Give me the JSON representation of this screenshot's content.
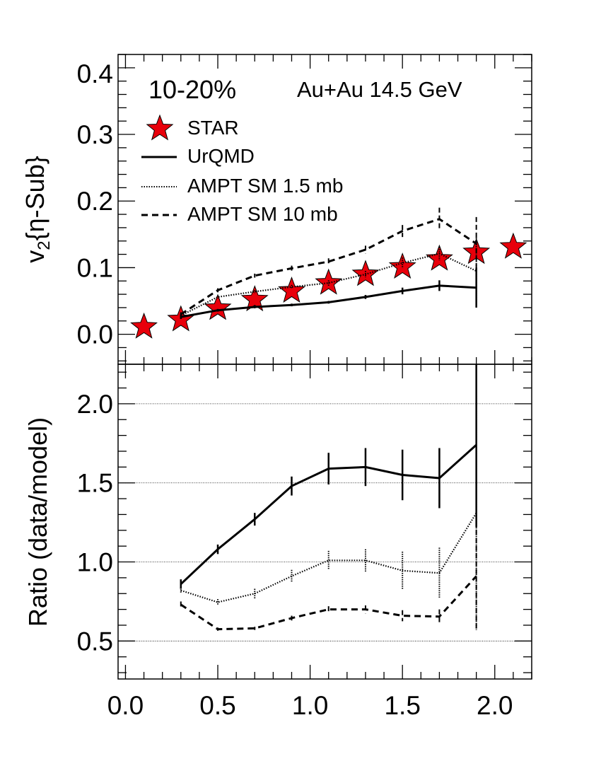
{
  "chart_data": [
    {
      "type": "line",
      "panel": "top",
      "ylabel_main": "v",
      "ylabel_sub": "2",
      "ylabel_rest": "{η-Sub}",
      "xlim": [
        -0.04,
        2.2
      ],
      "ylim": [
        -0.045,
        0.42
      ],
      "yticks": [
        0.0,
        0.1,
        0.2,
        0.3
      ],
      "ytick_labels": [
        "0.0",
        "0.1",
        "0.2",
        "0.3"
      ],
      "ytop_label": "0.4",
      "annotations": {
        "centrality": "10-20%",
        "system": "Au+Au 14.5 GeV"
      },
      "legend": {
        "position": "top-left",
        "entries": [
          "STAR",
          "UrQMD",
          "AMPT SM 1.5 mb",
          "AMPT SM 10 mb"
        ]
      },
      "series": [
        {
          "name": "STAR",
          "style": "star",
          "color": "#e8000b",
          "x": [
            0.1,
            0.3,
            0.5,
            0.7,
            0.9,
            1.1,
            1.3,
            1.5,
            1.7,
            1.9,
            2.1
          ],
          "y": [
            0.011,
            0.022,
            0.039,
            0.052,
            0.065,
            0.077,
            0.09,
            0.101,
            0.113,
            0.123,
            0.131
          ]
        },
        {
          "name": "UrQMD",
          "style": "solid",
          "x": [
            0.3,
            0.5,
            0.7,
            0.9,
            1.1,
            1.3,
            1.5,
            1.7,
            1.9
          ],
          "y": [
            0.026,
            0.036,
            0.041,
            0.044,
            0.048,
            0.056,
            0.065,
            0.073,
            0.07
          ],
          "err": [
            0.003,
            0.002,
            0.002,
            0.002,
            0.002,
            0.003,
            0.005,
            0.008,
            0.03
          ]
        },
        {
          "name": "AMPT SM 1.5 mb",
          "style": "dotted",
          "x": [
            0.3,
            0.5,
            0.7,
            0.9,
            1.1,
            1.3,
            1.5,
            1.7,
            1.9
          ],
          "y": [
            0.028,
            0.056,
            0.064,
            0.071,
            0.077,
            0.09,
            0.107,
            0.121,
            0.095
          ],
          "err": [
            0.002,
            0.002,
            0.002,
            0.003,
            0.004,
            0.005,
            0.008,
            0.01,
            0.05
          ]
        },
        {
          "name": "AMPT SM 10 mb",
          "style": "dashed",
          "x": [
            0.3,
            0.5,
            0.7,
            0.9,
            1.1,
            1.3,
            1.5,
            1.7,
            1.9
          ],
          "y": [
            0.03,
            0.066,
            0.088,
            0.099,
            0.109,
            0.127,
            0.155,
            0.173,
            0.136
          ],
          "err": [
            0.003,
            0.003,
            0.003,
            0.004,
            0.005,
            0.006,
            0.009,
            0.017,
            0.04
          ]
        }
      ]
    },
    {
      "type": "line",
      "panel": "bottom",
      "ylabel": "Ratio (data/model)",
      "xlim": [
        -0.04,
        2.2
      ],
      "ylim": [
        0.26,
        2.25
      ],
      "yticks": [
        0.5,
        1.0,
        1.5,
        2.0
      ],
      "ytick_labels": [
        "0.5",
        "1.0",
        "1.5",
        "2.0"
      ],
      "grid_lines": [
        0.5,
        1.0,
        1.5,
        2.0
      ],
      "xticks": [
        0.0,
        0.5,
        1.0,
        1.5,
        2.0
      ],
      "xtick_labels": [
        "0.0",
        "0.5",
        "1.0",
        "1.5",
        "2.0"
      ],
      "series": [
        {
          "name": "UrQMD",
          "style": "solid",
          "x": [
            0.3,
            0.5,
            0.7,
            0.9,
            1.1,
            1.3,
            1.5,
            1.7,
            1.9
          ],
          "y": [
            0.86,
            1.08,
            1.27,
            1.48,
            1.59,
            1.6,
            1.55,
            1.53,
            1.74
          ],
          "err": [
            0.03,
            0.03,
            0.04,
            0.06,
            0.1,
            0.12,
            0.16,
            0.19,
            0.52
          ]
        },
        {
          "name": "AMPT SM 1.5 mb",
          "style": "dotted",
          "x": [
            0.3,
            0.5,
            0.7,
            0.9,
            1.1,
            1.3,
            1.5,
            1.7,
            1.9
          ],
          "y": [
            0.82,
            0.745,
            0.8,
            0.91,
            1.01,
            1.01,
            0.945,
            0.93,
            1.31
          ],
          "err": [
            0.02,
            0.02,
            0.03,
            0.04,
            0.06,
            0.07,
            0.12,
            0.16,
            0.74
          ]
        },
        {
          "name": "AMPT SM 10 mb",
          "style": "dashed",
          "x": [
            0.3,
            0.5,
            0.7,
            0.9,
            1.1,
            1.3,
            1.5,
            1.7,
            1.9
          ],
          "y": [
            0.73,
            0.575,
            0.58,
            0.645,
            0.7,
            0.7,
            0.66,
            0.655,
            0.91
          ],
          "err": [
            0.02,
            0.01,
            0.01,
            0.015,
            0.02,
            0.025,
            0.035,
            0.045,
            0.34
          ]
        }
      ]
    }
  ]
}
